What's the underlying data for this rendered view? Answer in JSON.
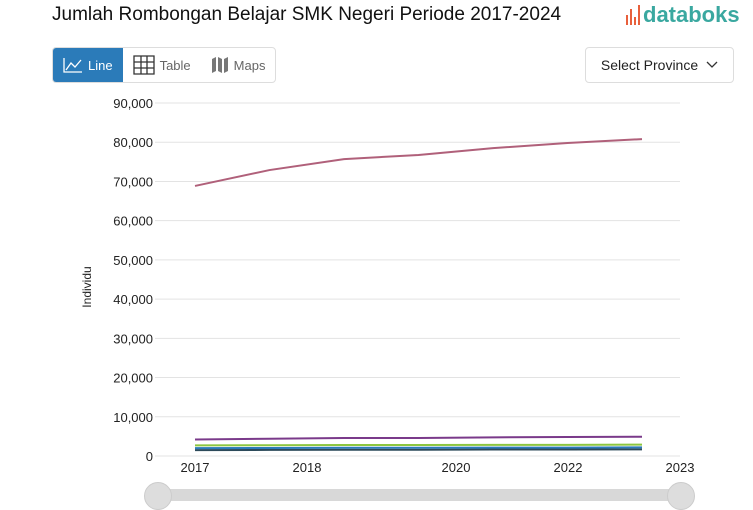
{
  "title": "Jumlah Rombongan Belajar SMK Negeri Periode 2017-2024",
  "logo": "databoks",
  "tabs": [
    {
      "label": "Line",
      "icon": "line-chart-icon",
      "active": true
    },
    {
      "label": "Table",
      "icon": "table-icon"
    },
    {
      "label": "Maps",
      "icon": "map-icon"
    }
  ],
  "province_select": {
    "label": "Select Province",
    "icon": "chevron-down-icon"
  },
  "colors": {
    "accent": "#2b7bb9",
    "logo": "#3aa8a0",
    "logo_bars": "#e8603c"
  },
  "chart_data": {
    "type": "line",
    "ylabel": "Individu",
    "ylim": [
      0,
      90000
    ],
    "yticks": [
      "90,000",
      "80,000",
      "70,000",
      "60,000",
      "50,000",
      "40,000",
      "30,000",
      "20,000",
      "10,000",
      "0"
    ],
    "xticks": [
      "2017",
      "2018",
      "2020",
      "2022",
      "2023"
    ],
    "grid": true,
    "series": [
      {
        "color": "#b0607a",
        "values": [
          68850,
          72900,
          75700,
          76750,
          78500,
          79800,
          80800
        ]
      },
      {
        "color": "#7a3a8a",
        "values": [
          4200,
          4400,
          4600,
          4600,
          4750,
          4850,
          4900
        ]
      },
      {
        "color": "#8cc63f",
        "values": [
          2700,
          2750,
          2800,
          2800,
          2850,
          2850,
          2900
        ]
      },
      {
        "color": "#2b7bb9",
        "values": [
          2000,
          2050,
          2100,
          2100,
          2150,
          2150,
          2200
        ]
      },
      {
        "color": "#2c4a5a",
        "values": [
          1500,
          1550,
          1600,
          1600,
          1650,
          1650,
          1700
        ]
      }
    ]
  }
}
